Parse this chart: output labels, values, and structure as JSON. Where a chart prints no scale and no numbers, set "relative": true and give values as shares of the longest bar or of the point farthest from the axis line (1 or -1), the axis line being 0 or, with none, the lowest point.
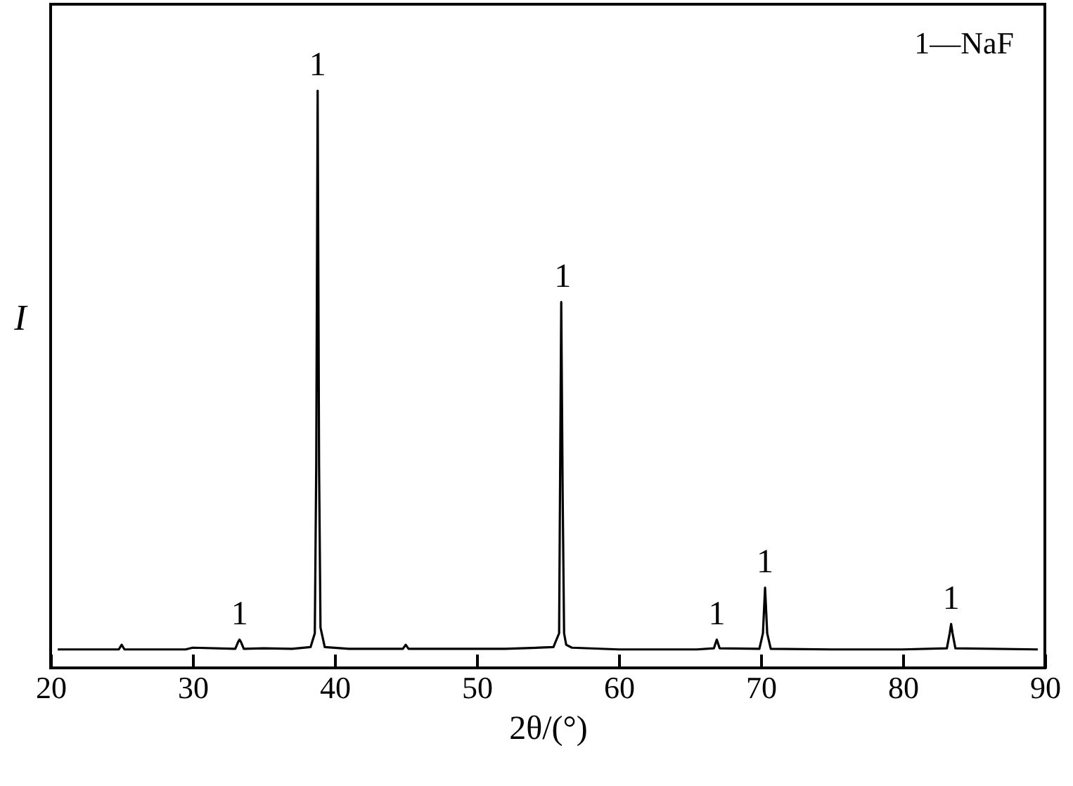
{
  "chart_data": {
    "type": "line",
    "relative": true,
    "xlabel": "2θ/(°)",
    "ylabel": "I",
    "xlim": [
      20,
      90
    ],
    "xticks": [
      20,
      30,
      40,
      50,
      60,
      70,
      80,
      90
    ],
    "grid": false,
    "marker": "none",
    "line_style": "solid",
    "x": [
      20.5,
      24.8,
      25,
      25.2,
      29.5,
      30,
      33.0,
      33.2,
      33.3,
      33.4,
      33.6,
      35,
      37,
      38.3,
      38.6,
      38.7,
      38.8,
      38.9,
      39.0,
      39.3,
      41,
      44.8,
      45,
      45.2,
      48,
      52,
      55.4,
      55.8,
      55.95,
      56.05,
      56.15,
      56.3,
      56.7,
      60,
      65.5,
      66.7,
      66.9,
      67.1,
      69.9,
      70.15,
      70.3,
      70.45,
      70.7,
      75,
      80,
      83.1,
      83.3,
      83.4,
      83.5,
      83.7,
      89.5
    ],
    "series": [
      {
        "color": "#000000",
        "values": [
          0.032,
          0.032,
          0.04,
          0.032,
          0.032,
          0.035,
          0.033,
          0.045,
          0.049,
          0.045,
          0.033,
          0.034,
          0.033,
          0.036,
          0.06,
          0.35,
          1,
          0.35,
          0.07,
          0.036,
          0.033,
          0.033,
          0.04,
          0.033,
          0.033,
          0.033,
          0.036,
          0.06,
          0.634,
          0.3,
          0.06,
          0.04,
          0.035,
          0.032,
          0.032,
          0.034,
          0.049,
          0.034,
          0.033,
          0.06,
          0.139,
          0.06,
          0.033,
          0.032,
          0.032,
          0.034,
          0.06,
          0.076,
          0.06,
          0.034,
          0.032
        ]
      }
    ],
    "annotations": [
      {
        "text": "1",
        "x": 33.3,
        "y": 0.049
      },
      {
        "text": "1",
        "x": 38.8,
        "y": 1
      },
      {
        "text": "1",
        "x": 56.05,
        "y": 0.634
      },
      {
        "text": "1",
        "x": 66.9,
        "y": 0.049
      },
      {
        "text": "1",
        "x": 70.3,
        "y": 0.139
      },
      {
        "text": "1",
        "x": 83.4,
        "y": 0.076
      },
      "1—NaF"
    ]
  }
}
